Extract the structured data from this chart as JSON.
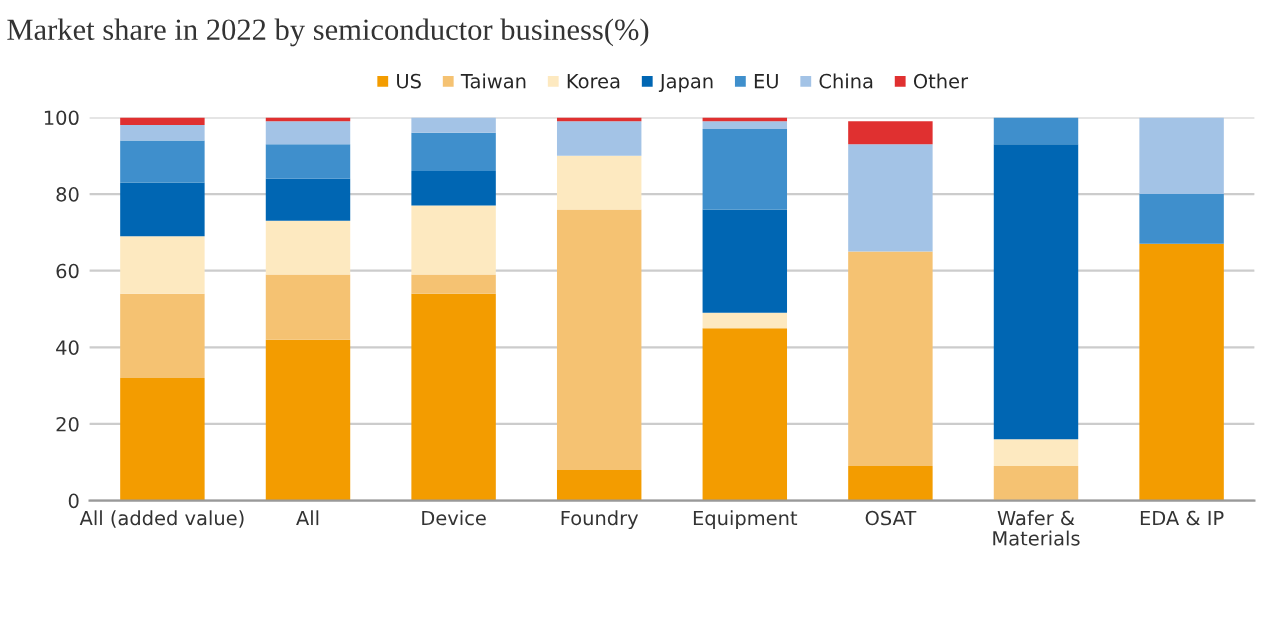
{
  "chart_data": {
    "type": "bar",
    "stacked": true,
    "title": "Market share in 2022 by semiconductor business(%)",
    "categories": [
      "All (added value)",
      "All",
      "Device",
      "Foundry",
      "Equipment",
      "OSAT",
      "Wafer &\nMaterials",
      "EDA & IP"
    ],
    "series": [
      {
        "name": "US",
        "color": "#f39c00",
        "values": [
          32,
          42,
          54,
          8,
          45,
          9,
          null,
          67
        ]
      },
      {
        "name": "Taiwan",
        "color": "#f5c272",
        "values": [
          22,
          17,
          5,
          68,
          null,
          56,
          9,
          null
        ]
      },
      {
        "name": "Korea",
        "color": "#fde9c0",
        "values": [
          15,
          14,
          18,
          14,
          4,
          null,
          7,
          null
        ]
      },
      {
        "name": "Japan",
        "color": "#0066b3",
        "values": [
          14,
          11,
          9,
          null,
          27,
          null,
          77,
          null
        ]
      },
      {
        "name": "EU",
        "color": "#3f8fcc",
        "values": [
          11,
          9,
          10,
          null,
          21,
          null,
          7,
          13
        ]
      },
      {
        "name": "China",
        "color": "#a3c3e6",
        "values": [
          4,
          6,
          4,
          9,
          2,
          28,
          null,
          20
        ]
      },
      {
        "name": "Other",
        "color": "#e03030",
        "values": [
          2,
          1,
          null,
          1,
          1,
          6,
          null,
          null
        ]
      }
    ],
    "ylim": [
      0,
      100
    ],
    "yticks": [
      0,
      20,
      40,
      60,
      80,
      100
    ],
    "grid": "y",
    "legend": "top"
  }
}
